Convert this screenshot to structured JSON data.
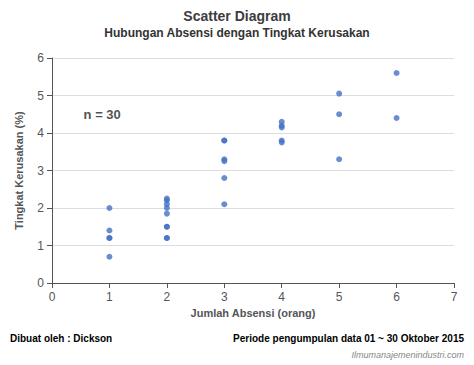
{
  "chart_data": {
    "type": "scatter",
    "title": "Scatter Diagram",
    "subtitle": "Hubungan Absensi dengan Tingkat Kerusakan",
    "xlabel": "Jumlah Absensi (orang)",
    "ylabel": "Tingkat Kerusakan (%)",
    "x": [
      1,
      1,
      1,
      1,
      1,
      2,
      2,
      2,
      2,
      2,
      2,
      2,
      2,
      2,
      3,
      3,
      3,
      3,
      3,
      3,
      4,
      4,
      4,
      4,
      4,
      5,
      5,
      5,
      6,
      6
    ],
    "values": [
      0.7,
      1.2,
      1.2,
      1.4,
      2.0,
      1.2,
      1.2,
      1.5,
      1.5,
      1.85,
      2.0,
      2.1,
      2.2,
      2.25,
      2.1,
      2.8,
      3.25,
      3.3,
      3.8,
      3.8,
      3.75,
      3.8,
      4.15,
      4.2,
      4.3,
      3.3,
      4.5,
      5.05,
      4.4,
      5.6
    ],
    "color": "#4472C4",
    "xlim": [
      0,
      7
    ],
    "ylim": [
      0,
      6
    ],
    "xticks": [
      0,
      1,
      2,
      3,
      4,
      5,
      6,
      7
    ],
    "yticks": [
      0,
      1,
      2,
      3,
      4,
      5,
      6
    ],
    "grid": "y",
    "annotations": [
      {
        "text": "n = 30",
        "x": 0.55,
        "y": 4.5
      },
      {
        "text": "Dibuat oleh : Dickson"
      },
      {
        "text": "Periode pengumpulan data 01 ~ 30 Oktober 2015"
      },
      {
        "text": "Ilmumanajemenindustri.com"
      }
    ]
  }
}
